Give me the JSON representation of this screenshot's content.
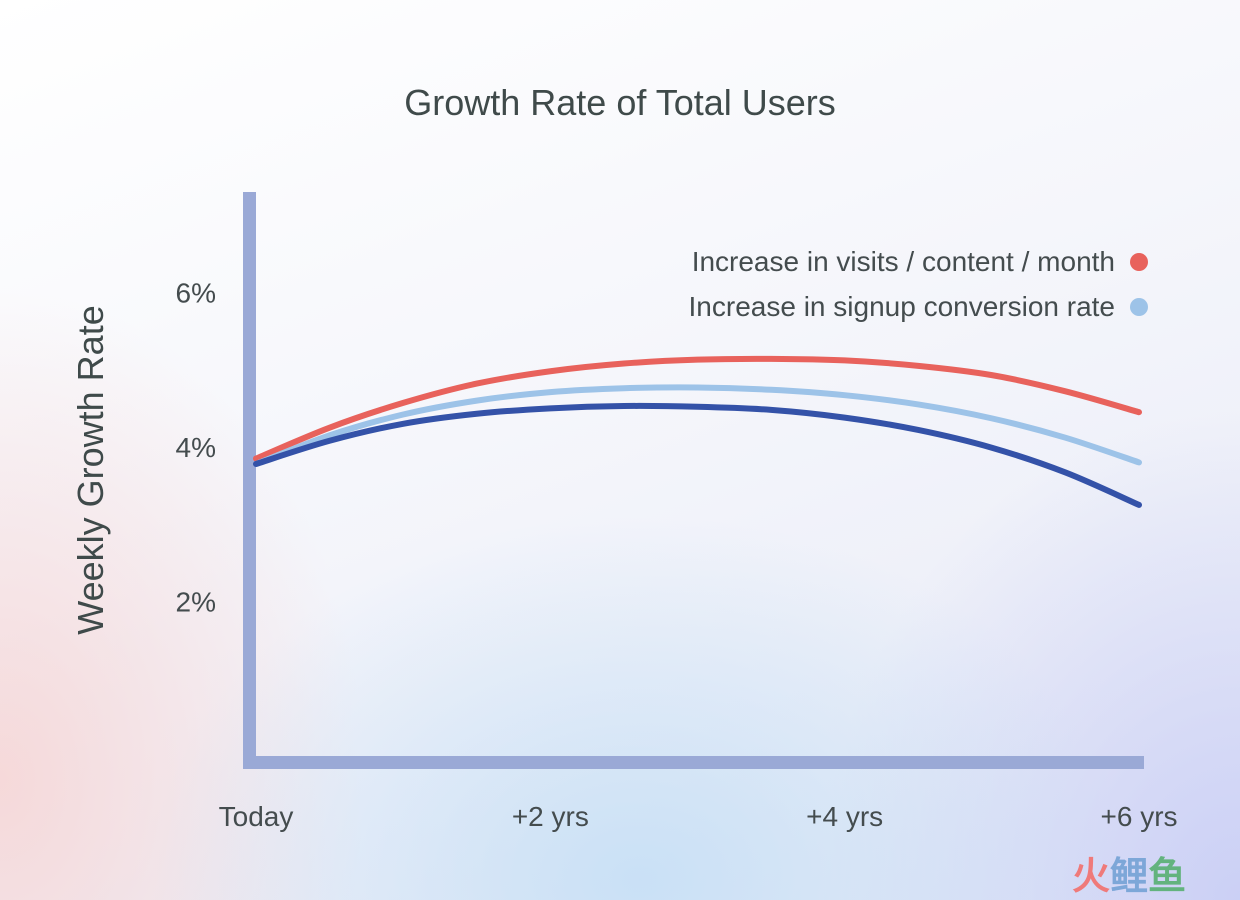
{
  "chart_data": {
    "type": "line",
    "title": "Growth Rate of Total Users",
    "xlabel": "",
    "ylabel": "Weekly Growth Rate",
    "x": [
      0,
      0.5,
      1,
      1.5,
      2,
      2.5,
      3,
      3.5,
      4,
      4.5,
      5,
      5.5,
      6
    ],
    "x_ticks": [
      {
        "value": 0,
        "label": "Today"
      },
      {
        "value": 2,
        "label": "+2 yrs"
      },
      {
        "value": 4,
        "label": "+4 yrs"
      },
      {
        "value": 6,
        "label": "+6 yrs"
      }
    ],
    "y_ticks": [
      {
        "value": 2,
        "label": "2%"
      },
      {
        "value": 4,
        "label": "4%"
      },
      {
        "value": 6,
        "label": "6%"
      }
    ],
    "xlim": [
      0,
      6
    ],
    "ylim": [
      0,
      7.3
    ],
    "grid": false,
    "legend_position": "top-right",
    "series": [
      {
        "name": "Increase in visits / content / month",
        "color": "#e8625c",
        "values": [
          3.85,
          4.25,
          4.57,
          4.82,
          4.98,
          5.08,
          5.13,
          5.14,
          5.12,
          5.05,
          4.93,
          4.72,
          4.45
        ]
      },
      {
        "name": "Increase in signup conversion rate",
        "color": "#9dc3e8",
        "values": [
          3.78,
          4.15,
          4.42,
          4.6,
          4.71,
          4.76,
          4.77,
          4.74,
          4.67,
          4.55,
          4.37,
          4.12,
          3.8
        ]
      },
      {
        "color": "#3452a8",
        "values": [
          3.78,
          4.08,
          4.3,
          4.43,
          4.5,
          4.53,
          4.52,
          4.48,
          4.38,
          4.22,
          3.99,
          3.67,
          3.25
        ]
      }
    ]
  },
  "axis_color": "#9aa9d6",
  "watermark": {
    "text": "火鲤鱼",
    "colors": [
      "#ef7a7a",
      "#7da7d8",
      "#63b37e"
    ]
  }
}
